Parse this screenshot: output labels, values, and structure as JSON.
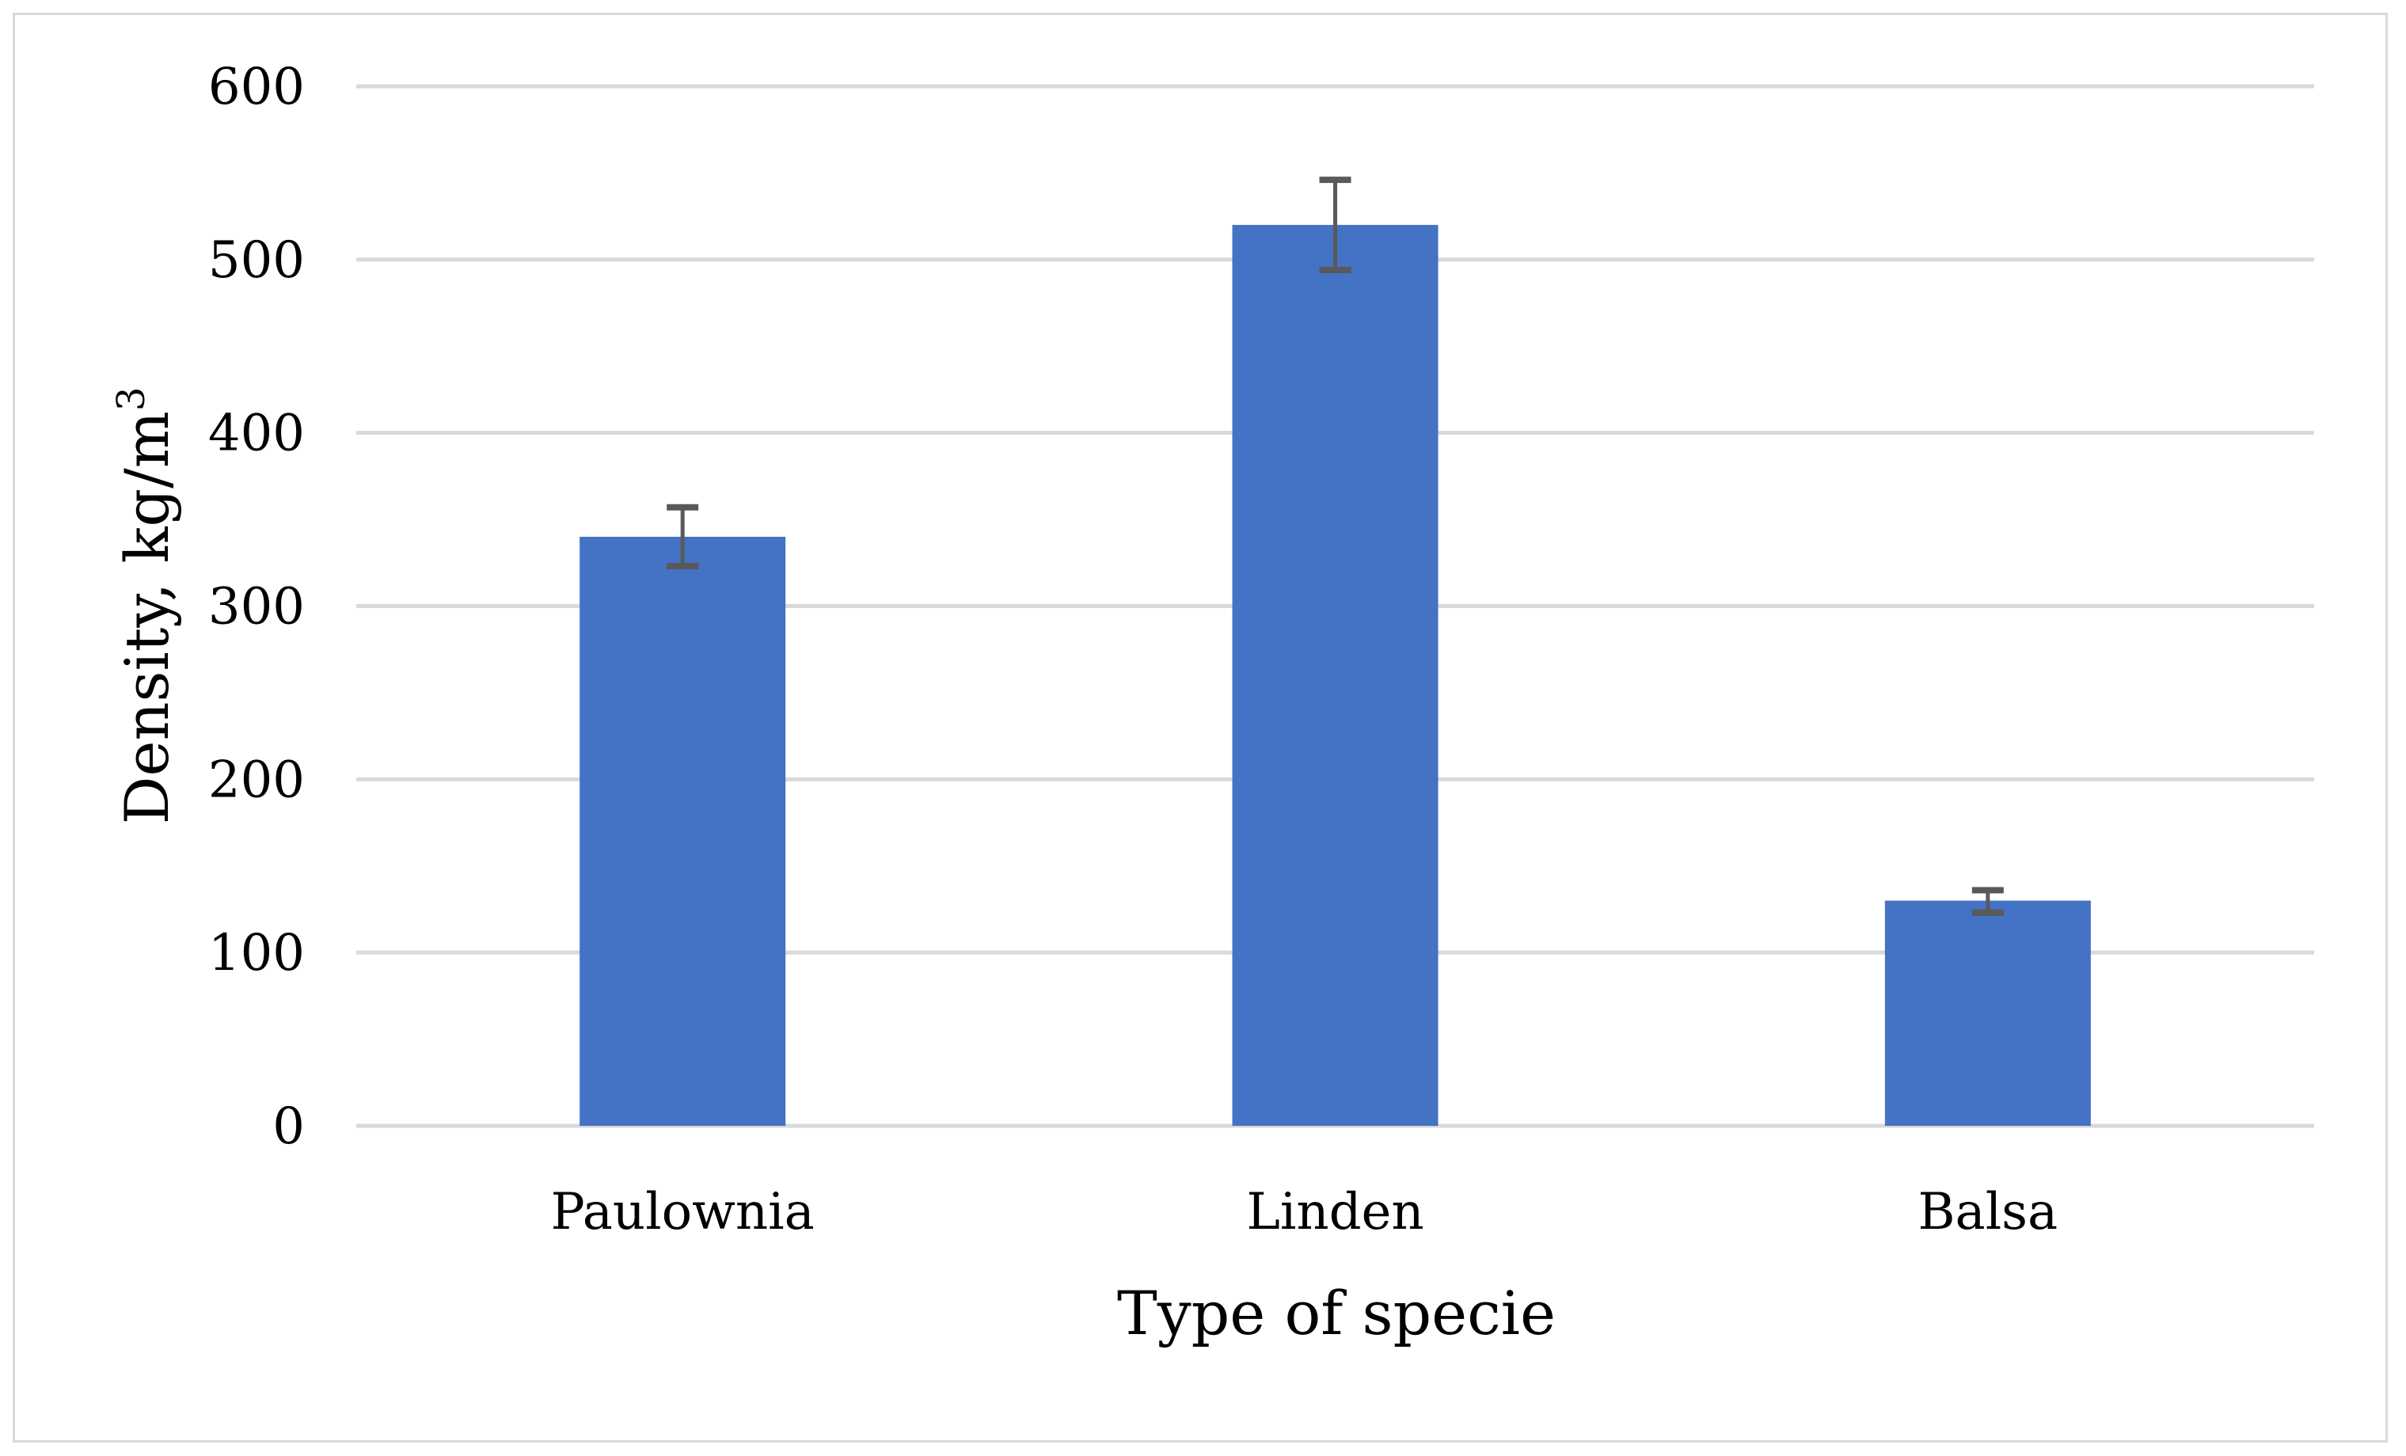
{
  "chart_data": {
    "type": "bar",
    "title": "",
    "xlabel": "Type of specie",
    "ylabel": "Density, kg/m",
    "ylabel_superscript": "3",
    "categories": [
      "Paulownia",
      "Linden",
      "Balsa"
    ],
    "values": [
      340,
      520,
      130
    ],
    "error_bars": [
      {
        "low": 323,
        "high": 357
      },
      {
        "low": 494,
        "high": 546
      },
      {
        "low": 123,
        "high": 136
      }
    ],
    "ylim": [
      0,
      600
    ],
    "yticks": [
      0,
      100,
      200,
      300,
      400,
      500,
      600
    ],
    "grid": true,
    "legend": "none",
    "colors": {
      "bar": "#4472c4",
      "error_bar": "#595959",
      "grid": "#d9d9d9"
    }
  }
}
